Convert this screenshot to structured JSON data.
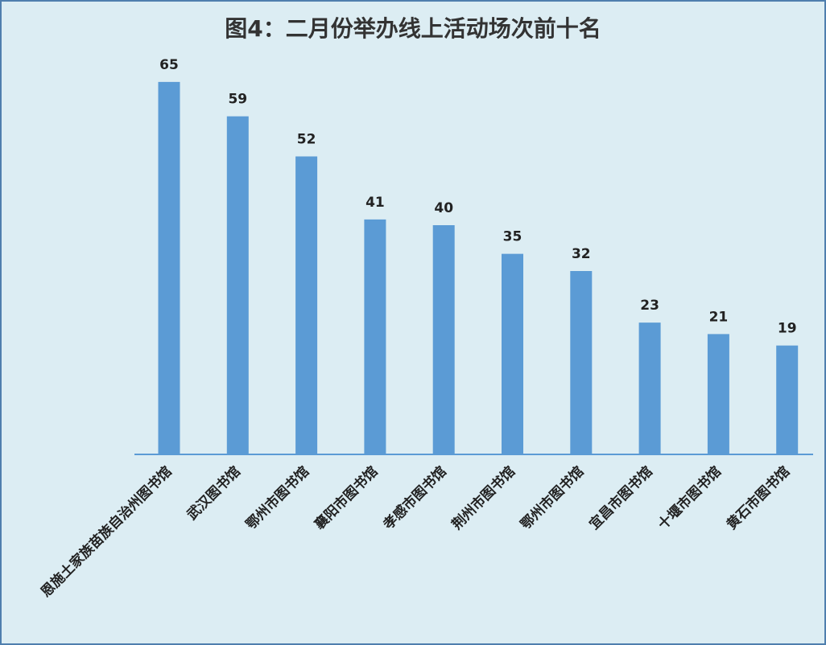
{
  "colors": {
    "bar": "#5b9bd5",
    "axis": "#5b9bd5",
    "background": "#dcedf3",
    "border": "#4f7fae"
  },
  "chart_data": {
    "type": "bar",
    "title": "图4：二月份举办线上活动场次前十名",
    "xlabel": "",
    "ylabel": "",
    "grid": false,
    "legend": "none",
    "categories": [
      "恩施土家族苗族自治州图书馆",
      "武汉图书馆",
      "鄂州市图书馆",
      "襄阳市图书馆",
      "孝感市图书馆",
      "荆州市图书馆",
      "鄂州市图书馆",
      "宜昌市图书馆",
      "十堰市图书馆",
      "黄石市图书馆"
    ],
    "values": [
      65,
      59,
      52,
      41,
      40,
      35,
      32,
      23,
      21,
      19
    ]
  }
}
